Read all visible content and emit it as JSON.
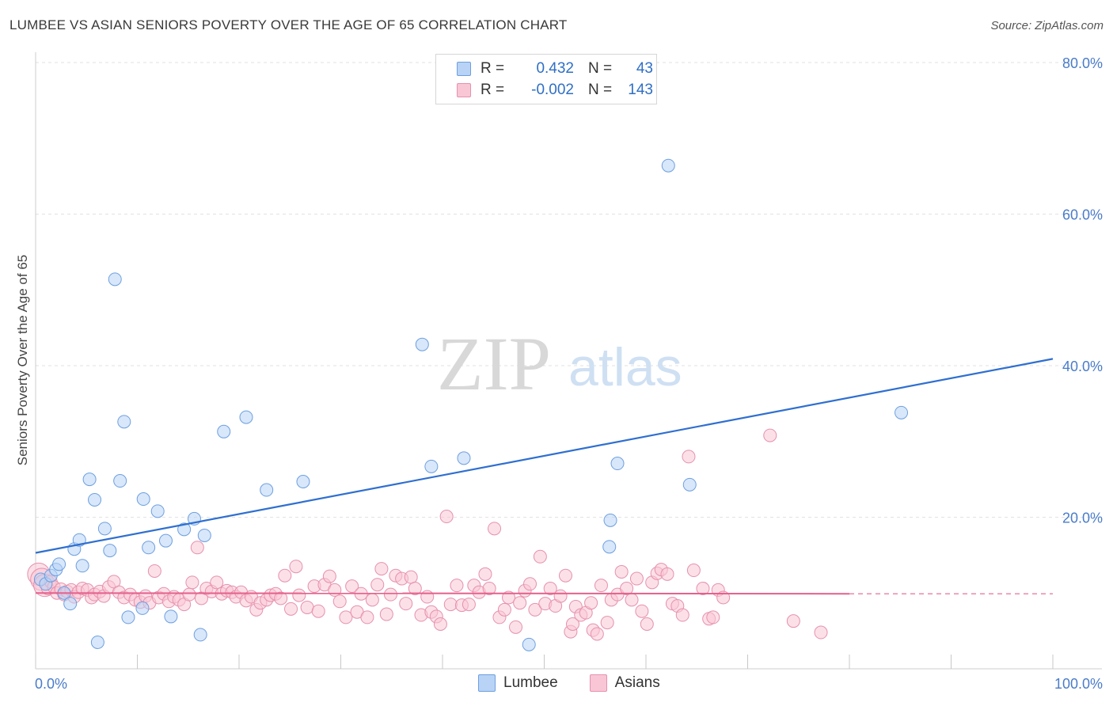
{
  "title": "LUMBEE VS ASIAN SENIORS POVERTY OVER THE AGE OF 65 CORRELATION CHART",
  "source": "Source: ZipAtlas.com",
  "watermark": {
    "zip": "ZIP",
    "atlas": "atlas"
  },
  "legend": {
    "rows": [
      {
        "r_label": "R =",
        "r_value": "0.432",
        "n_label": "N =",
        "n_value": "43",
        "color": "#b8d3f5",
        "border": "#6d9fe0"
      },
      {
        "r_label": "R =",
        "r_value": "-0.002",
        "n_label": "N =",
        "n_value": "143",
        "color": "#f9c6d6",
        "border": "#e691ad"
      }
    ]
  },
  "bottom_legend": [
    "Lumbee",
    "Asians"
  ],
  "colors": {
    "lumbee_fill": "#b8d3f5",
    "lumbee_stroke": "#6d9fe0",
    "lumbee_line": "#2f6fd0",
    "asian_fill": "#f9c6d6",
    "asian_stroke": "#e691ad",
    "asian_line": "#e5608c"
  },
  "chart_data": {
    "type": "scatter",
    "title": "LUMBEE VS ASIAN SENIORS POVERTY OVER THE AGE OF 65 CORRELATION CHART",
    "xlabel": "",
    "ylabel": "Seniors Poverty Over the Age of 65",
    "xlim": [
      0,
      100
    ],
    "ylim": [
      0,
      80
    ],
    "x_tick_labels": [
      "0.0%",
      "100.0%"
    ],
    "y_tick_labels": [
      "20.0%",
      "40.0%",
      "60.0%",
      "80.0%"
    ],
    "y_ticks": [
      20,
      40,
      60,
      80
    ],
    "grid": true,
    "legend_position": "top-center",
    "series": [
      {
        "name": "Lumbee",
        "points": [
          [
            0.5,
            11.8
          ],
          [
            1,
            11.2
          ],
          [
            1.5,
            12.3
          ],
          [
            2,
            13.1
          ],
          [
            2.3,
            13.8
          ],
          [
            2.8,
            10
          ],
          [
            3.4,
            8.6
          ],
          [
            3.8,
            15.8
          ],
          [
            4.3,
            17
          ],
          [
            4.6,
            13.6
          ],
          [
            5.3,
            25
          ],
          [
            5.8,
            22.3
          ],
          [
            6.1,
            3.5
          ],
          [
            6.8,
            18.5
          ],
          [
            7.3,
            15.6
          ],
          [
            7.8,
            51.4
          ],
          [
            8.3,
            24.8
          ],
          [
            8.7,
            32.6
          ],
          [
            9.1,
            6.8
          ],
          [
            10.5,
            8
          ],
          [
            10.6,
            22.4
          ],
          [
            11.1,
            16
          ],
          [
            12,
            20.8
          ],
          [
            12.8,
            16.9
          ],
          [
            13.3,
            6.9
          ],
          [
            14.6,
            18.4
          ],
          [
            15.6,
            19.8
          ],
          [
            16.2,
            4.5
          ],
          [
            16.6,
            17.6
          ],
          [
            18.5,
            31.3
          ],
          [
            20.7,
            33.2
          ],
          [
            22.7,
            23.6
          ],
          [
            26.3,
            24.7
          ],
          [
            38,
            42.8
          ],
          [
            38.9,
            26.7
          ],
          [
            42.1,
            27.8
          ],
          [
            48.5,
            3.2
          ],
          [
            56.4,
            16.1
          ],
          [
            56.5,
            19.6
          ],
          [
            57.2,
            27.1
          ],
          [
            62.2,
            66.4
          ],
          [
            64.3,
            24.3
          ],
          [
            85.1,
            33.8
          ]
        ]
      },
      {
        "name": "Asians",
        "points": [
          [
            0.3,
            12.5
          ],
          [
            0.6,
            11.8
          ],
          [
            0.9,
            11
          ],
          [
            1.2,
            10.6
          ],
          [
            1.5,
            11.5
          ],
          [
            1.8,
            10.8
          ],
          [
            2.1,
            10
          ],
          [
            2.5,
            10.5
          ],
          [
            2.8,
            9.8
          ],
          [
            3.1,
            10.2
          ],
          [
            3.5,
            10.4
          ],
          [
            3.8,
            9.5
          ],
          [
            4.2,
            10.1
          ],
          [
            4.6,
            10.6
          ],
          [
            5.1,
            10.4
          ],
          [
            5.5,
            9.4
          ],
          [
            5.8,
            9.8
          ],
          [
            6.3,
            10.2
          ],
          [
            6.7,
            9.6
          ],
          [
            7.2,
            10.8
          ],
          [
            7.7,
            11.5
          ],
          [
            8.2,
            10.1
          ],
          [
            8.7,
            9.4
          ],
          [
            9.3,
            9.8
          ],
          [
            9.8,
            9.1
          ],
          [
            10.3,
            8.8
          ],
          [
            10.8,
            9.6
          ],
          [
            11.2,
            8.7
          ],
          [
            11.7,
            12.9
          ],
          [
            12.1,
            9.4
          ],
          [
            12.6,
            9.9
          ],
          [
            13.1,
            8.9
          ],
          [
            13.6,
            9.5
          ],
          [
            14.1,
            9.1
          ],
          [
            14.6,
            8.5
          ],
          [
            15.1,
            9.8
          ],
          [
            15.4,
            11.4
          ],
          [
            15.9,
            16
          ],
          [
            16.3,
            9.3
          ],
          [
            16.8,
            10.6
          ],
          [
            17.3,
            10.2
          ],
          [
            17.8,
            11.4
          ],
          [
            18.3,
            9.9
          ],
          [
            18.8,
            10.3
          ],
          [
            19.3,
            10.1
          ],
          [
            19.7,
            9.5
          ],
          [
            20.2,
            10.1
          ],
          [
            20.7,
            9
          ],
          [
            21.2,
            9.5
          ],
          [
            21.7,
            7.8
          ],
          [
            22.1,
            8.7
          ],
          [
            22.7,
            9.1
          ],
          [
            23.1,
            9.7
          ],
          [
            23.6,
            9.9
          ],
          [
            24.1,
            9.3
          ],
          [
            24.5,
            12.3
          ],
          [
            25.1,
            7.9
          ],
          [
            25.6,
            13.5
          ],
          [
            25.9,
            9.7
          ],
          [
            26.7,
            8.1
          ],
          [
            27.4,
            10.9
          ],
          [
            27.8,
            7.6
          ],
          [
            28.4,
            11.1
          ],
          [
            28.9,
            12.2
          ],
          [
            29.4,
            10.4
          ],
          [
            29.9,
            8.9
          ],
          [
            30.5,
            6.8
          ],
          [
            31.1,
            10.9
          ],
          [
            31.6,
            7.5
          ],
          [
            32,
            9.9
          ],
          [
            32.6,
            6.8
          ],
          [
            33.1,
            9.1
          ],
          [
            33.6,
            11.1
          ],
          [
            34,
            13.2
          ],
          [
            34.5,
            7.2
          ],
          [
            34.9,
            9.8
          ],
          [
            35.4,
            12.3
          ],
          [
            36,
            11.9
          ],
          [
            36.4,
            8.6
          ],
          [
            36.9,
            12.1
          ],
          [
            37.3,
            10.6
          ],
          [
            37.9,
            7.1
          ],
          [
            38.5,
            9.5
          ],
          [
            38.9,
            7.5
          ],
          [
            39.4,
            6.9
          ],
          [
            39.8,
            5.9
          ],
          [
            40.4,
            20.1
          ],
          [
            40.8,
            8.5
          ],
          [
            41.4,
            11
          ],
          [
            41.9,
            8.4
          ],
          [
            42.6,
            8.5
          ],
          [
            43.1,
            11
          ],
          [
            43.6,
            10.1
          ],
          [
            44.2,
            12.5
          ],
          [
            44.6,
            10.6
          ],
          [
            45.1,
            18.5
          ],
          [
            45.6,
            6.8
          ],
          [
            46.1,
            7.8
          ],
          [
            46.5,
            9.4
          ],
          [
            47.2,
            5.5
          ],
          [
            47.6,
            8.7
          ],
          [
            48.1,
            10.3
          ],
          [
            48.6,
            11.2
          ],
          [
            49.1,
            7.8
          ],
          [
            49.6,
            14.8
          ],
          [
            50.1,
            8.6
          ],
          [
            50.6,
            10.6
          ],
          [
            51.1,
            8.3
          ],
          [
            51.6,
            9.6
          ],
          [
            52.1,
            12.3
          ],
          [
            52.6,
            4.9
          ],
          [
            52.8,
            5.9
          ],
          [
            53.1,
            8.2
          ],
          [
            53.6,
            7.1
          ],
          [
            54.1,
            7.4
          ],
          [
            54.6,
            8.7
          ],
          [
            54.8,
            5.1
          ],
          [
            55.2,
            4.6
          ],
          [
            55.6,
            11
          ],
          [
            56.2,
            6.1
          ],
          [
            56.6,
            9.1
          ],
          [
            57.2,
            9.8
          ],
          [
            57.6,
            12.8
          ],
          [
            58.1,
            10.6
          ],
          [
            58.6,
            9.1
          ],
          [
            59.1,
            11.9
          ],
          [
            59.6,
            7.6
          ],
          [
            60.1,
            5.9
          ],
          [
            60.6,
            11.4
          ],
          [
            61.1,
            12.6
          ],
          [
            61.5,
            13.1
          ],
          [
            62.1,
            12.5
          ],
          [
            62.6,
            8.6
          ],
          [
            63.1,
            8.3
          ],
          [
            63.6,
            7.1
          ],
          [
            64.2,
            28
          ],
          [
            64.7,
            13
          ],
          [
            65.6,
            10.6
          ],
          [
            66.2,
            6.6
          ],
          [
            66.6,
            6.8
          ],
          [
            67.1,
            10.4
          ],
          [
            67.6,
            9.4
          ],
          [
            72.2,
            30.8
          ],
          [
            74.5,
            6.3
          ],
          [
            77.2,
            4.8
          ]
        ]
      }
    ],
    "trend_lines": [
      {
        "series": "Lumbee",
        "x": [
          0,
          100
        ],
        "y": [
          15.3,
          40.9
        ]
      },
      {
        "series": "Asians",
        "x": [
          0,
          80
        ],
        "y": [
          10.0,
          9.9
        ],
        "dashed_extension": [
          80,
          100
        ]
      }
    ]
  }
}
